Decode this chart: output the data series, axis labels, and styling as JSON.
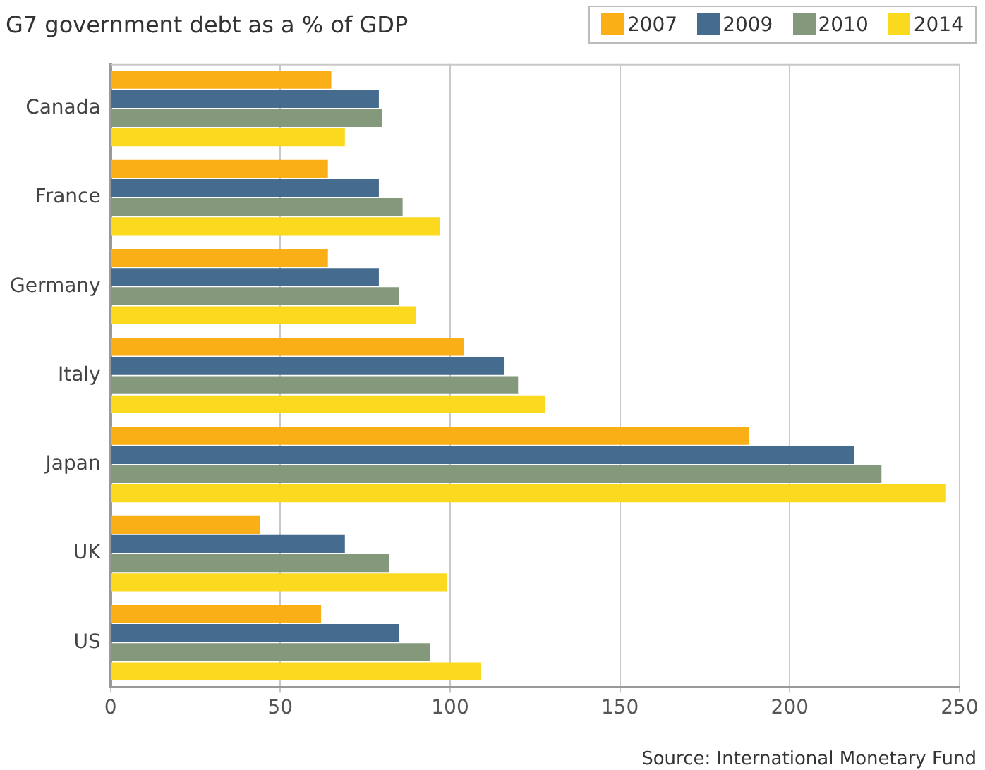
{
  "chart_data": {
    "type": "bar",
    "orientation": "horizontal",
    "title": "G7 government debt as a % of GDP",
    "categories": [
      "Canada",
      "France",
      "Germany",
      "Italy",
      "Japan",
      "UK",
      "US"
    ],
    "series": [
      {
        "name": "2007",
        "color": "#fbaf17",
        "values": [
          65,
          64,
          64,
          104,
          188,
          44,
          62
        ]
      },
      {
        "name": "2009",
        "color": "#456b8f",
        "values": [
          79,
          79,
          79,
          116,
          219,
          69,
          85
        ]
      },
      {
        "name": "2010",
        "color": "#84997c",
        "values": [
          80,
          86,
          85,
          120,
          227,
          82,
          94
        ]
      },
      {
        "name": "2014",
        "color": "#fbd91e",
        "values": [
          69,
          97,
          90,
          128,
          246,
          99,
          109
        ]
      }
    ],
    "xlim": [
      0,
      250
    ],
    "xticks": [
      0,
      50,
      100,
      150,
      200,
      250
    ],
    "grid": "x",
    "legend": "top right",
    "annotations": [
      "Source: International Monetary Fund"
    ]
  }
}
